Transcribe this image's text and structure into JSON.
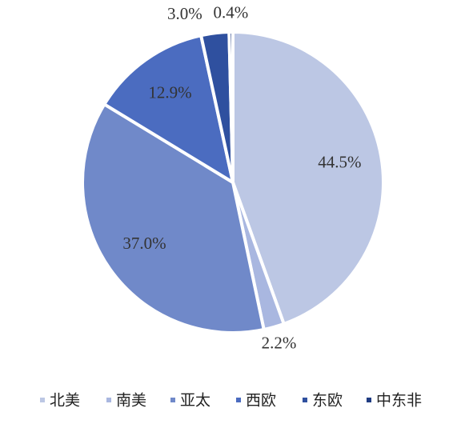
{
  "chart_data": {
    "type": "pie",
    "categories": [
      "北美",
      "南美",
      "亚太",
      "西欧",
      "东欧",
      "中东非"
    ],
    "values": [
      44.5,
      2.2,
      37.0,
      12.9,
      3.0,
      0.4
    ],
    "value_labels": [
      "44.5%",
      "2.2%",
      "37.0%",
      "12.9%",
      "3.0%",
      "0.4%"
    ],
    "colors": [
      "#bcc7e4",
      "#a9b7e0",
      "#7089c9",
      "#4b6cc0",
      "#2f509f",
      "#203c82"
    ],
    "legend": "bottom"
  }
}
